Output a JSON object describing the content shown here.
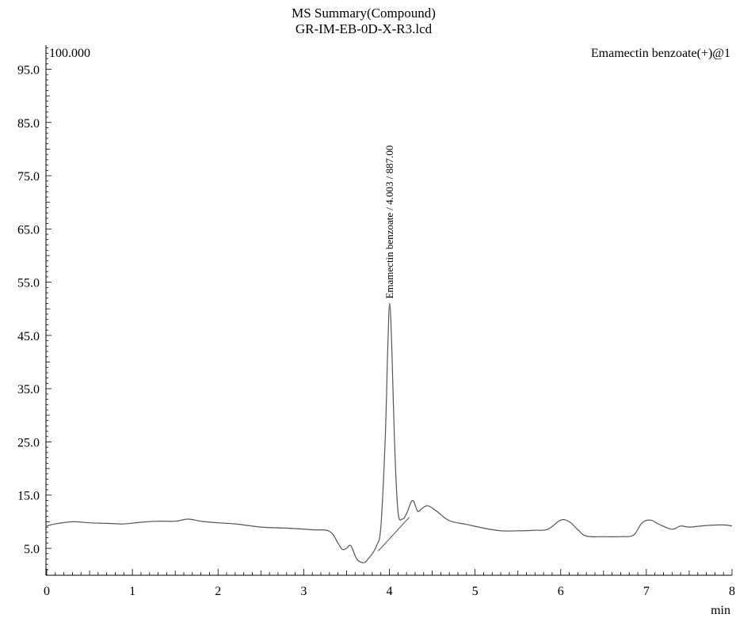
{
  "chart_data": {
    "type": "line",
    "title": "MS Summary(Compound)",
    "subtitle": "GR-IM-EB-0D-X-R3.lcd",
    "xlabel": "min",
    "ylabel": "",
    "xlim": [
      0,
      8
    ],
    "ylim": [
      0,
      100
    ],
    "x_ticks": [
      0,
      1,
      2,
      3,
      4,
      5,
      6,
      7,
      8
    ],
    "x_tick_labels": [
      "0",
      "1",
      "2",
      "3",
      "4",
      "5",
      "6",
      "7",
      "8"
    ],
    "y_ticks": [
      5,
      15,
      25,
      35,
      45,
      55,
      65,
      75,
      85,
      95
    ],
    "y_tick_labels": [
      "5.0",
      "15.0",
      "25.0",
      "35.0",
      "45.0",
      "55.0",
      "65.0",
      "75.0",
      "85.0",
      "95.0"
    ],
    "scale_label": "100.000",
    "trace_label": "Emamectin benzoate(+)@1",
    "grid": false,
    "series": [
      {
        "name": "",
        "color": "#555555",
        "x": [
          0,
          0.1,
          0.3,
          0.5,
          0.7,
          0.9,
          1.1,
          1.3,
          1.5,
          1.65,
          1.8,
          2.0,
          2.2,
          2.5,
          2.8,
          3.1,
          3.3,
          3.4,
          3.45,
          3.5,
          3.55,
          3.62,
          3.7,
          3.75,
          3.8,
          3.85,
          3.9,
          3.95,
          3.98,
          4.003,
          4.03,
          4.06,
          4.1,
          4.15,
          4.2,
          4.27,
          4.33,
          4.38,
          4.45,
          4.55,
          4.7,
          4.9,
          5.1,
          5.3,
          5.5,
          5.7,
          5.85,
          6.0,
          6.1,
          6.2,
          6.3,
          6.5,
          6.7,
          6.85,
          6.95,
          7.05,
          7.15,
          7.3,
          7.4,
          7.5,
          7.7,
          7.9,
          8.0
        ],
        "y": [
          9.2,
          9.6,
          10.0,
          9.8,
          9.7,
          9.6,
          9.9,
          10.1,
          10.1,
          10.5,
          10.1,
          9.8,
          9.6,
          9.0,
          8.8,
          8.5,
          8.2,
          6.0,
          4.8,
          5.0,
          5.5,
          3.0,
          2.3,
          3.0,
          4.0,
          5.5,
          9.0,
          25.0,
          42.0,
          51.0,
          42.0,
          25.0,
          12.0,
          10.5,
          11.5,
          14.0,
          12.0,
          12.5,
          13.0,
          12.0,
          10.2,
          9.5,
          8.8,
          8.3,
          8.3,
          8.4,
          8.6,
          10.3,
          10.0,
          8.5,
          7.3,
          7.2,
          7.2,
          7.5,
          9.8,
          10.3,
          9.5,
          8.6,
          9.2,
          9.0,
          9.3,
          9.4,
          9.2
        ]
      }
    ],
    "peak": {
      "label": "Emamectin benzoate / 4.003 / 887.00",
      "x": 4.003,
      "y": 51.0,
      "baseline": {
        "x": [
          3.87,
          4.23
        ],
        "y": [
          4.5,
          10.8
        ]
      }
    }
  }
}
